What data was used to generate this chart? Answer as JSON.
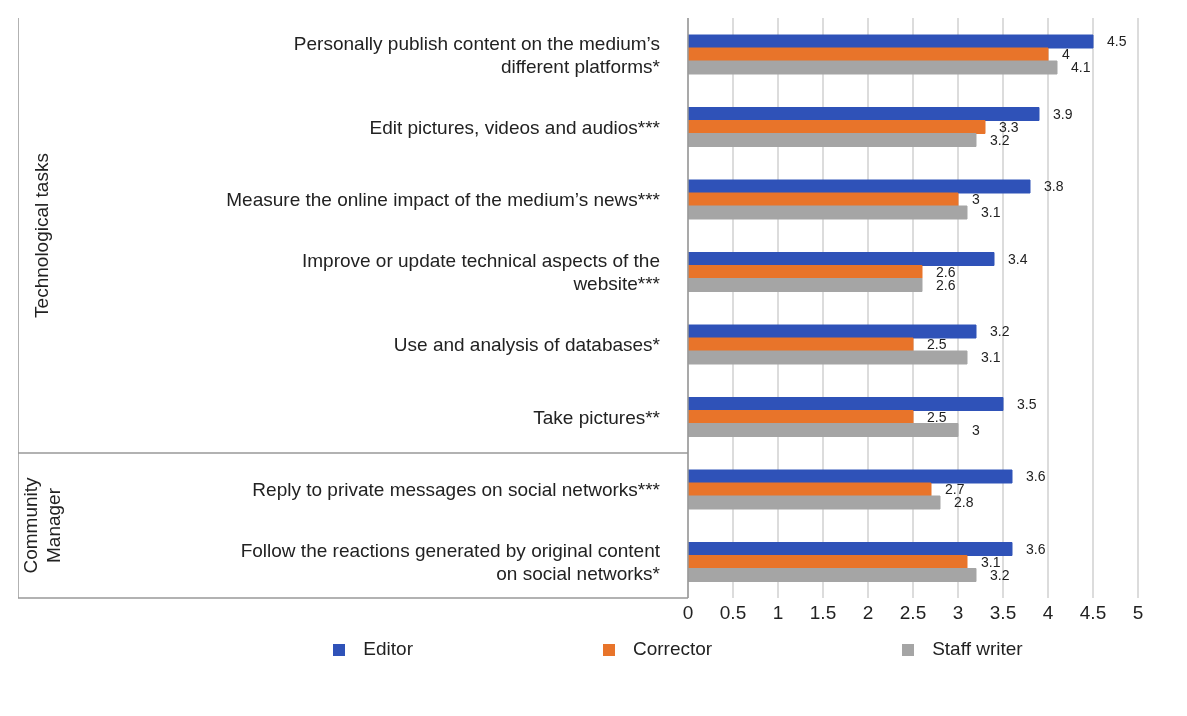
{
  "chart_data": {
    "type": "bar",
    "orientation": "horizontal",
    "categories": [
      "Personally publish content on the medium’s different platforms*",
      "Edit pictures, videos and audios***",
      "Measure the online impact of the medium’s news***",
      "Improve or update technical aspects of the website***",
      "Use and analysis of databases*",
      "Take pictures**",
      "Reply to private messages on social networks***",
      "Follow the reactions generated by original content on social networks*"
    ],
    "series": [
      {
        "name": "Editor",
        "color": "#2f52b8",
        "values": [
          4.5,
          3.9,
          3.8,
          3.4,
          3.2,
          3.5,
          3.6,
          3.6
        ]
      },
      {
        "name": "Corrector",
        "color": "#e8742a",
        "values": [
          4,
          3.3,
          3,
          2.6,
          2.5,
          2.5,
          2.7,
          3.1
        ]
      },
      {
        "name": "Staff writer",
        "color": "#a5a5a5",
        "values": [
          4.1,
          3.2,
          3.1,
          2.6,
          3.1,
          3,
          2.8,
          3.2
        ]
      }
    ],
    "annotations": [
      "Technological tasks",
      "Community Manager"
    ],
    "xlim": [
      0,
      5
    ],
    "xticks": [
      0,
      0.5,
      1,
      1.5,
      2,
      2.5,
      3,
      3.5,
      4,
      4.5,
      5
    ],
    "grid": "x",
    "legend": "bottom",
    "data_labels": true
  }
}
